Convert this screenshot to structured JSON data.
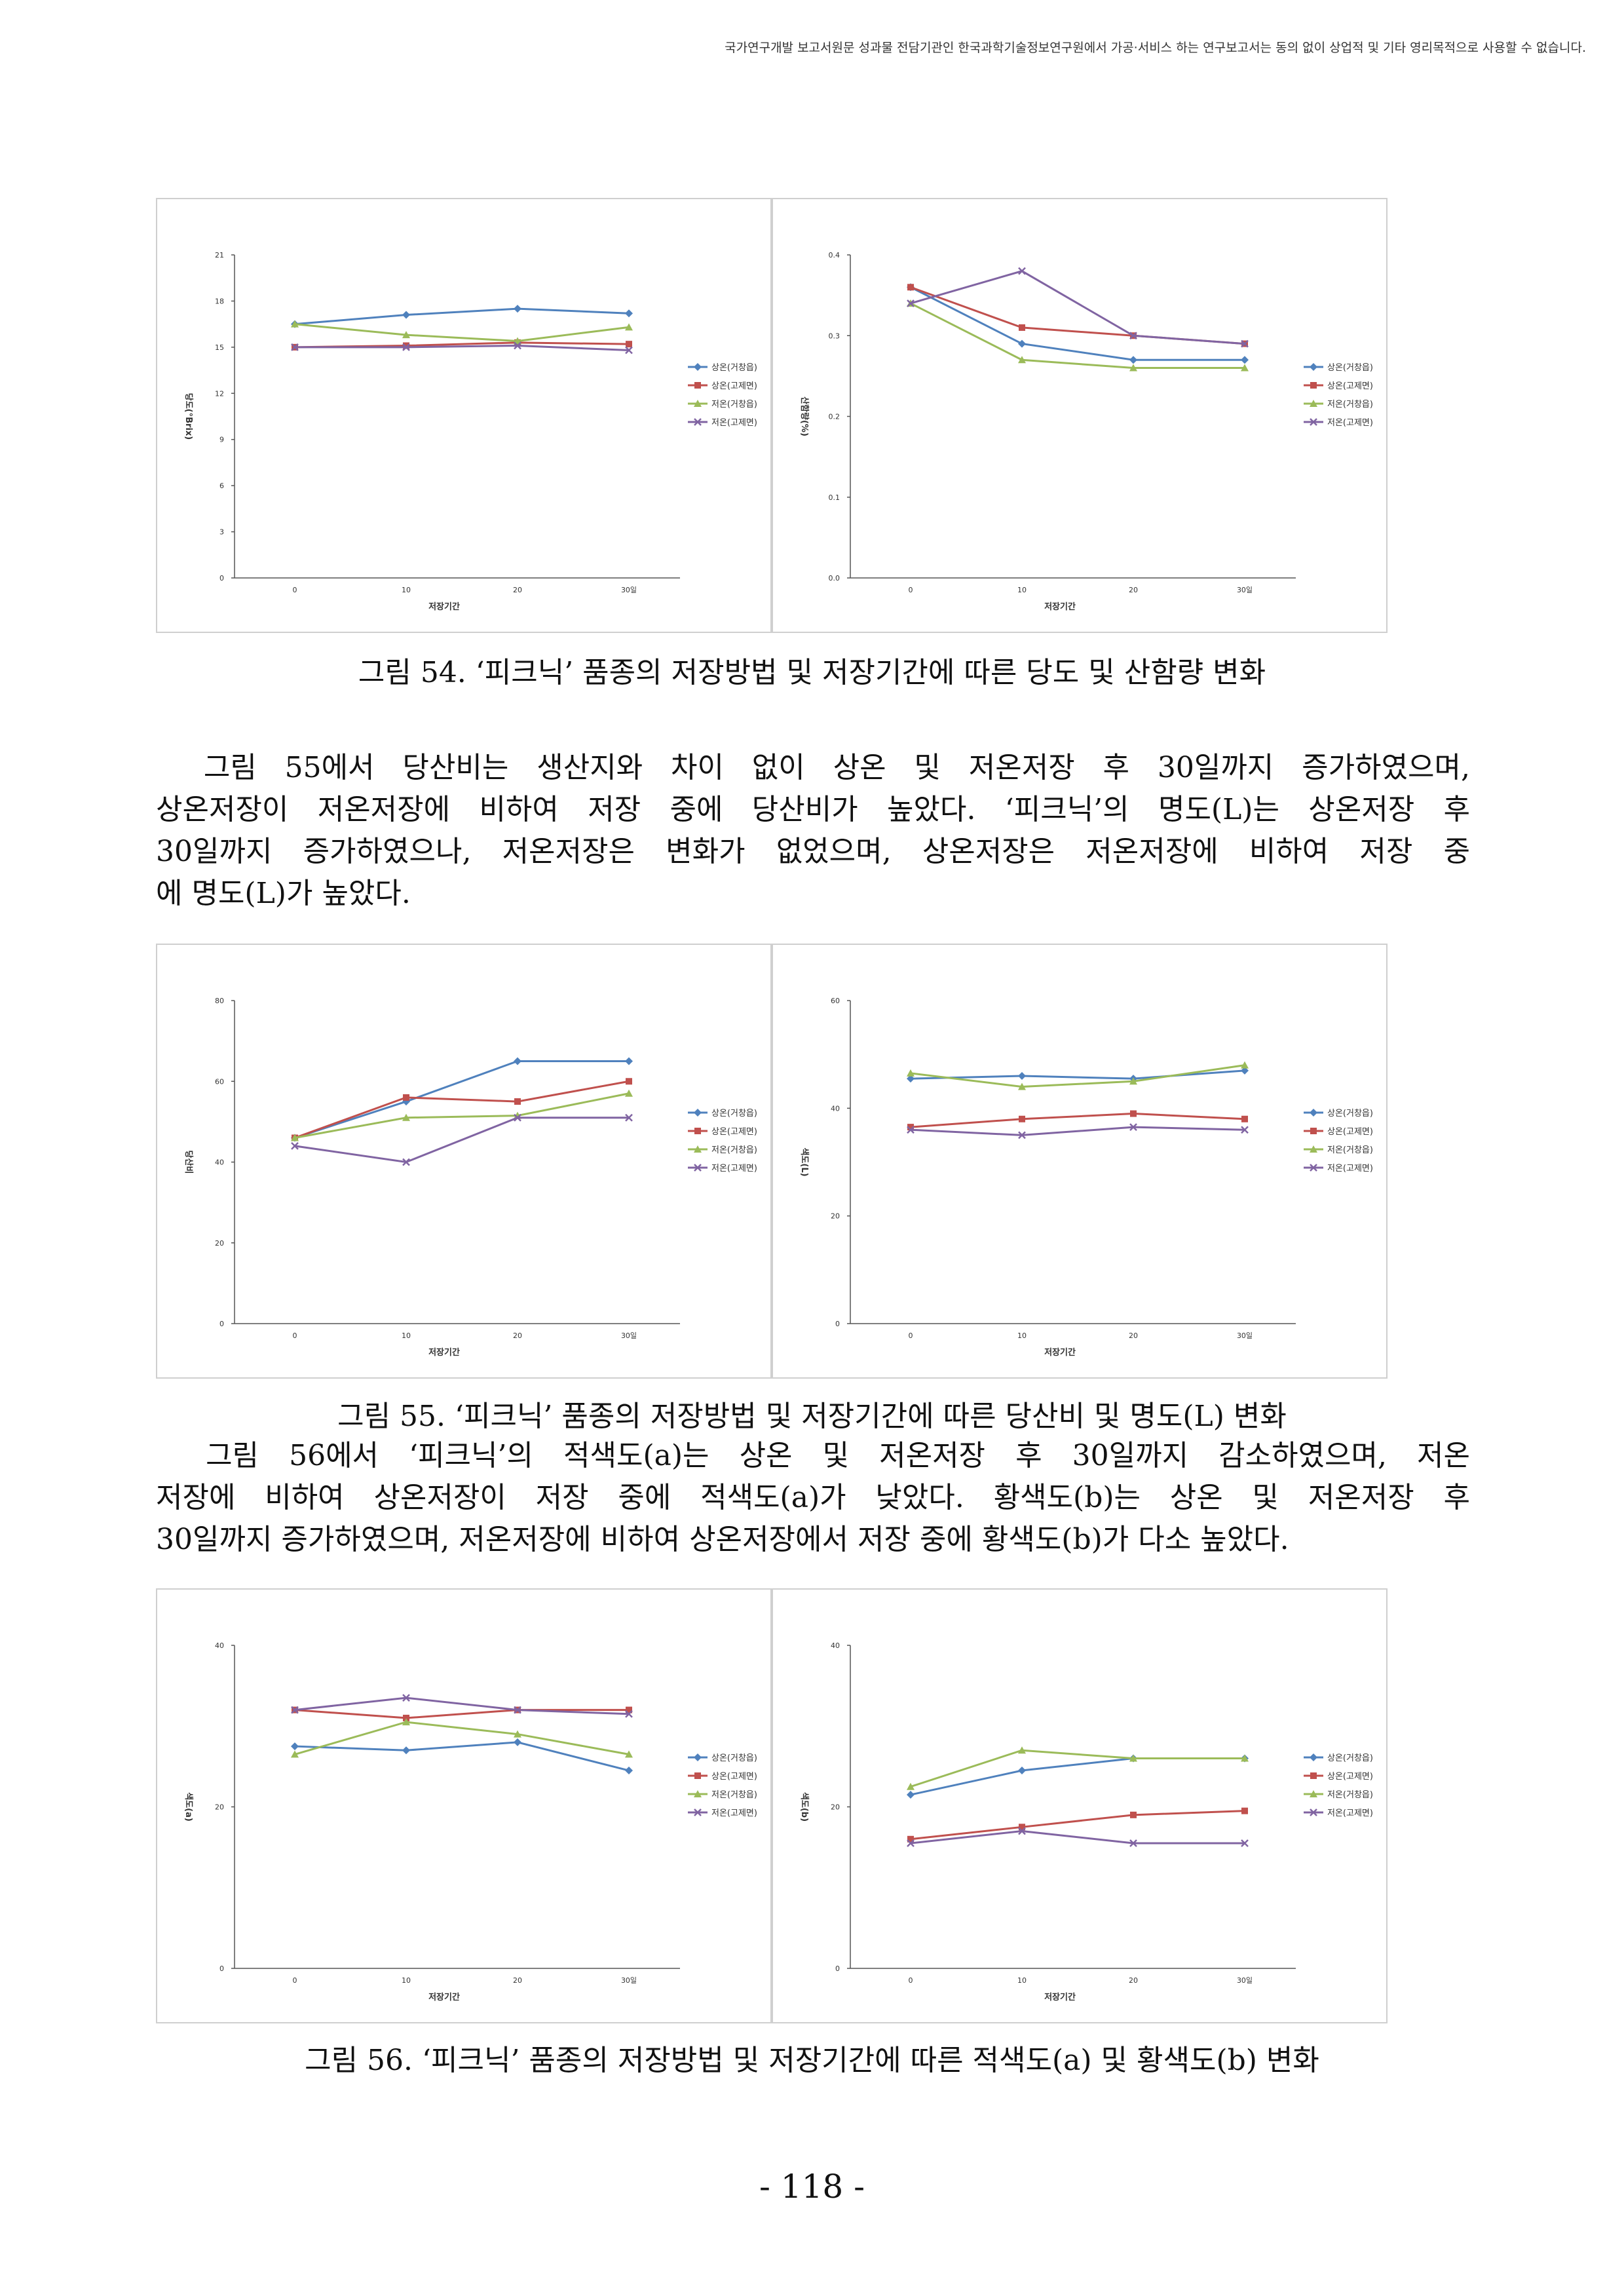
{
  "header": {
    "notice": "국가연구개발 보고서원문 성과물 전담기관인 한국과학기술정보연구원에서 가공·서비스 하는 연구보고서는 동의 없이 상업적 및 기타 영리목적으로 사용할 수 없습니다."
  },
  "paragraphs": [
    {
      "lines": [
        "　그림 55에서 당산비는 생산지와 차이 없이 상온 및 저온저장 후 30일까지 증가하였으며,",
        "상온저장이 저온저장에 비하여 저장 중에 당산비가 높았다. ‘피크닉’의 명도(L)는 상온저장 후",
        "30일까지 증가하였으나, 저온저장은 변화가 없었으며, 상온저장은 저온저장에 비하여 저장 중",
        "에 명도(L)가 높았다."
      ]
    },
    {
      "lines": [
        "　그림 56에서 ‘피크닉’의 적색도(a)는 상온 및 저온저장 후 30일까지 감소하였으며, 저온",
        "저장에 비하여 상온저장이 저장 중에 적색도(a)가 낮았다. 황색도(b)는 상온 및 저온저장 후",
        "30일까지 증가하였으며, 저온저장에 비하여 상온저장에서 저장 중에 황색도(b)가 다소 높았다."
      ]
    }
  ],
  "captions": {
    "fig54": "그림 54. ‘피크닉’ 품종의 저장방법 및 저장기간에 따른 당도 및 산함량 변화",
    "fig55": "그림 55. ‘피크닉’ 품종의 저장방법 및 저장기간에 따른 당산비 및 명도(L) 변화",
    "fig56": "그림 56. ‘피크닉’ 품종의 저장방법 및 저장기간에 따른 적색도(a) 및 황색도(b) 변화"
  },
  "page_number": "- 118 -",
  "chart_data": [
    {
      "type": "line",
      "figure": "fig54-left",
      "categories": [
        "0",
        "10",
        "20",
        "30일"
      ],
      "xlabel": "저장기간",
      "ylabel": "당도(°Brix)",
      "ylim": [
        0,
        21
      ],
      "yticks": [
        0,
        3,
        6,
        9,
        12,
        15,
        18,
        21
      ],
      "legend_position": "right",
      "series": [
        {
          "name": "상온(거창읍)",
          "color": "#4f81bd",
          "marker": "diamond",
          "values": [
            16.5,
            17.1,
            17.5,
            17.2
          ]
        },
        {
          "name": "상온(고제면)",
          "color": "#c0504d",
          "marker": "square",
          "values": [
            15.0,
            15.1,
            15.3,
            15.2
          ]
        },
        {
          "name": "저온(거창읍)",
          "color": "#9bbb59",
          "marker": "triangle",
          "values": [
            16.5,
            15.8,
            15.4,
            16.3
          ]
        },
        {
          "name": "저온(고제면)",
          "color": "#8064a2",
          "marker": "x",
          "values": [
            15.0,
            15.0,
            15.1,
            14.8
          ]
        }
      ]
    },
    {
      "type": "line",
      "figure": "fig54-right",
      "categories": [
        "0",
        "10",
        "20",
        "30일"
      ],
      "xlabel": "저장기간",
      "ylabel": "산함량(%)",
      "ylim": [
        0.0,
        0.4
      ],
      "yticks": [
        "0.0",
        "0.1",
        "0.2",
        "0.3",
        "0.4"
      ],
      "legend_position": "right",
      "series": [
        {
          "name": "상온(거창읍)",
          "color": "#4f81bd",
          "marker": "diamond",
          "values": [
            0.36,
            0.29,
            0.27,
            0.27
          ]
        },
        {
          "name": "상온(고제면)",
          "color": "#c0504d",
          "marker": "square",
          "values": [
            0.36,
            0.31,
            0.3,
            0.29
          ]
        },
        {
          "name": "저온(거창읍)",
          "color": "#9bbb59",
          "marker": "triangle",
          "values": [
            0.34,
            0.27,
            0.26,
            0.26
          ]
        },
        {
          "name": "저온(고제면)",
          "color": "#8064a2",
          "marker": "x",
          "values": [
            0.34,
            0.38,
            0.3,
            0.29
          ]
        }
      ]
    },
    {
      "type": "line",
      "figure": "fig55-left",
      "categories": [
        "0",
        "10",
        "20",
        "30일"
      ],
      "xlabel": "저장기간",
      "ylabel": "당산비",
      "ylim": [
        0,
        80
      ],
      "yticks": [
        0,
        20,
        40,
        60,
        80
      ],
      "legend_position": "right",
      "series": [
        {
          "name": "상온(거창읍)",
          "color": "#4f81bd",
          "marker": "diamond",
          "values": [
            46,
            55,
            65,
            65
          ]
        },
        {
          "name": "상온(고제면)",
          "color": "#c0504d",
          "marker": "square",
          "values": [
            46,
            56,
            55,
            60
          ]
        },
        {
          "name": "저온(거창읍)",
          "color": "#9bbb59",
          "marker": "triangle",
          "values": [
            46,
            51,
            51.5,
            57
          ]
        },
        {
          "name": "저온(고제면)",
          "color": "#8064a2",
          "marker": "x",
          "values": [
            44,
            40,
            51,
            51
          ]
        }
      ]
    },
    {
      "type": "line",
      "figure": "fig55-right",
      "categories": [
        "0",
        "10",
        "20",
        "30일"
      ],
      "xlabel": "저장기간",
      "ylabel": "색도(L)",
      "ylim": [
        0,
        60
      ],
      "yticks": [
        0,
        20,
        40,
        60
      ],
      "legend_position": "right",
      "series": [
        {
          "name": "상온(거창읍)",
          "color": "#4f81bd",
          "marker": "diamond",
          "values": [
            45.5,
            46,
            45.5,
            47
          ]
        },
        {
          "name": "상온(고제면)",
          "color": "#c0504d",
          "marker": "square",
          "values": [
            36.5,
            38,
            39,
            38
          ]
        },
        {
          "name": "저온(거창읍)",
          "color": "#9bbb59",
          "marker": "triangle",
          "values": [
            46.5,
            44,
            45,
            48
          ]
        },
        {
          "name": "저온(고제면)",
          "color": "#8064a2",
          "marker": "x",
          "values": [
            36,
            35,
            36.5,
            36
          ]
        }
      ]
    },
    {
      "type": "line",
      "figure": "fig56-left",
      "categories": [
        "0",
        "10",
        "20",
        "30일"
      ],
      "xlabel": "저장기간",
      "ylabel": "색도(a)",
      "ylim": [
        0,
        40
      ],
      "yticks": [
        0,
        20,
        40
      ],
      "legend_position": "right",
      "series": [
        {
          "name": "상온(거창읍)",
          "color": "#4f81bd",
          "marker": "diamond",
          "values": [
            27.5,
            27,
            28,
            24.5
          ]
        },
        {
          "name": "상온(고제면)",
          "color": "#c0504d",
          "marker": "square",
          "values": [
            32,
            31,
            32,
            32
          ]
        },
        {
          "name": "저온(거창읍)",
          "color": "#9bbb59",
          "marker": "triangle",
          "values": [
            26.5,
            30.5,
            29,
            26.5
          ]
        },
        {
          "name": "저온(고제면)",
          "color": "#8064a2",
          "marker": "x",
          "values": [
            32,
            33.5,
            32,
            31.5
          ]
        }
      ]
    },
    {
      "type": "line",
      "figure": "fig56-right",
      "categories": [
        "0",
        "10",
        "20",
        "30일"
      ],
      "xlabel": "저장기간",
      "ylabel": "색도(b)",
      "ylim": [
        0,
        40
      ],
      "yticks": [
        0,
        20,
        40
      ],
      "legend_position": "right",
      "series": [
        {
          "name": "상온(거창읍)",
          "color": "#4f81bd",
          "marker": "diamond",
          "values": [
            21.5,
            24.5,
            26,
            26
          ]
        },
        {
          "name": "상온(고제면)",
          "color": "#c0504d",
          "marker": "square",
          "values": [
            16,
            17.5,
            19,
            19.5
          ]
        },
        {
          "name": "저온(거창읍)",
          "color": "#9bbb59",
          "marker": "triangle",
          "values": [
            22.5,
            27,
            26,
            26
          ]
        },
        {
          "name": "저온(고제면)",
          "color": "#8064a2",
          "marker": "x",
          "values": [
            15.5,
            17,
            15.5,
            15.5
          ]
        }
      ]
    }
  ]
}
